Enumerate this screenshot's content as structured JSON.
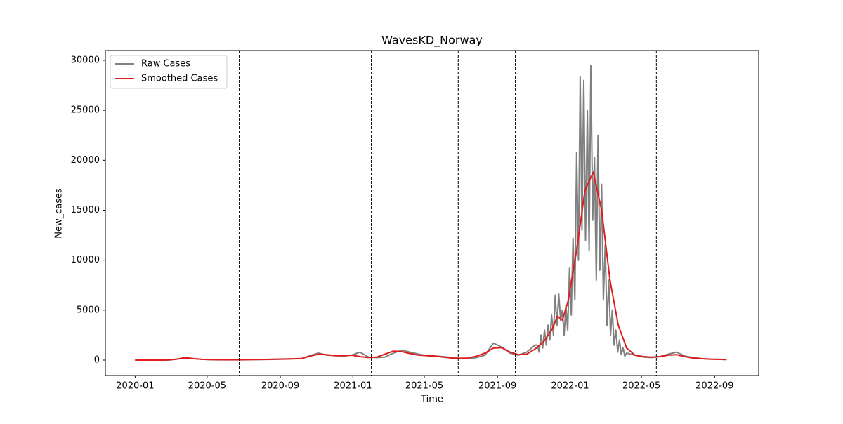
{
  "chart_data": {
    "type": "line",
    "title": "WavesKD_Norway",
    "xlabel": "Time",
    "ylabel": "New_cases",
    "xlim": [
      -50,
      1048
    ],
    "ylim": [
      -1546,
      30984
    ],
    "xticks": [
      {
        "value": 0,
        "label": "2020-01"
      },
      {
        "value": 121,
        "label": "2020-05"
      },
      {
        "value": 244,
        "label": "2020-09"
      },
      {
        "value": 366,
        "label": "2021-01"
      },
      {
        "value": 486,
        "label": "2021-05"
      },
      {
        "value": 609,
        "label": "2021-09"
      },
      {
        "value": 731,
        "label": "2022-01"
      },
      {
        "value": 851,
        "label": "2022-05"
      },
      {
        "value": 974,
        "label": "2022-09"
      }
    ],
    "yticks": [
      0,
      5000,
      10000,
      15000,
      20000,
      25000,
      30000
    ],
    "vlines": [
      175,
      397,
      543,
      639,
      876
    ],
    "legend": "upper left",
    "series": [
      {
        "name": "Raw Cases",
        "color": "#808080",
        "x": [
          0,
          14,
          28,
          42,
          56,
          70,
          84,
          98,
          112,
          126,
          140,
          154,
          168,
          182,
          196,
          210,
          224,
          238,
          252,
          266,
          280,
          294,
          308,
          322,
          336,
          350,
          364,
          378,
          392,
          406,
          420,
          434,
          448,
          462,
          476,
          490,
          504,
          518,
          532,
          546,
          560,
          574,
          588,
          602,
          616,
          630,
          644,
          658,
          672,
          676,
          679,
          682,
          685,
          688,
          691,
          694,
          697,
          700,
          703,
          706,
          709,
          712,
          715,
          718,
          721,
          724,
          727,
          730,
          733,
          736,
          739,
          742,
          745,
          748,
          751,
          754,
          757,
          760,
          763,
          766,
          769,
          772,
          775,
          778,
          781,
          784,
          787,
          790,
          793,
          796,
          799,
          802,
          805,
          808,
          811,
          814,
          817,
          820,
          823,
          826,
          840,
          854,
          868,
          882,
          896,
          910,
          924,
          938,
          952,
          966,
          980,
          994
        ],
        "values": [
          0,
          0,
          0,
          0,
          0,
          100,
          250,
          150,
          80,
          40,
          30,
          30,
          30,
          30,
          40,
          50,
          60,
          80,
          100,
          130,
          150,
          450,
          700,
          500,
          450,
          400,
          500,
          800,
          300,
          250,
          300,
          700,
          1000,
          800,
          600,
          450,
          400,
          350,
          250,
          150,
          150,
          250,
          500,
          1700,
          1300,
          700,
          500,
          800,
          1500,
          1500,
          800,
          2500,
          1200,
          3000,
          1500,
          3500,
          2000,
          4500,
          2500,
          6500,
          3500,
          6600,
          4000,
          5000,
          2500,
          5500,
          3000,
          9200,
          4500,
          12200,
          6000,
          20800,
          10000,
          28400,
          13000,
          28000,
          12000,
          25000,
          11000,
          29500,
          14000,
          20300,
          8000,
          22500,
          9000,
          17600,
          6000,
          11600,
          3500,
          8000,
          2500,
          5000,
          1500,
          3000,
          800,
          2000,
          600,
          1200,
          400,
          700,
          500,
          300,
          250,
          350,
          600,
          800,
          400,
          250,
          150,
          100,
          80,
          50
        ]
      },
      {
        "name": "Smoothed Cases",
        "color": "#e31a1c",
        "x": [
          0,
          14,
          28,
          42,
          56,
          70,
          84,
          98,
          112,
          126,
          140,
          154,
          168,
          182,
          196,
          210,
          224,
          238,
          252,
          266,
          280,
          294,
          308,
          322,
          336,
          350,
          364,
          378,
          392,
          406,
          420,
          434,
          448,
          462,
          476,
          490,
          504,
          518,
          532,
          546,
          560,
          574,
          588,
          602,
          616,
          630,
          644,
          658,
          672,
          686,
          700,
          710,
          718,
          728,
          742,
          756,
          770,
          784,
          798,
          812,
          826,
          840,
          854,
          868,
          882,
          896,
          910,
          924,
          938,
          952,
          966,
          980,
          994
        ],
        "values": [
          0,
          0,
          0,
          0,
          30,
          100,
          230,
          150,
          80,
          50,
          40,
          35,
          35,
          40,
          50,
          60,
          80,
          100,
          110,
          130,
          160,
          400,
          600,
          550,
          450,
          450,
          500,
          350,
          250,
          300,
          600,
          900,
          850,
          650,
          500,
          450,
          400,
          300,
          200,
          180,
          200,
          400,
          700,
          1200,
          1250,
          800,
          550,
          600,
          1100,
          1800,
          3000,
          4400,
          4000,
          6000,
          11000,
          17000,
          18800,
          15000,
          8000,
          3500,
          1200,
          500,
          350,
          300,
          350,
          500,
          550,
          350,
          200,
          150,
          100,
          80,
          50
        ]
      }
    ]
  }
}
